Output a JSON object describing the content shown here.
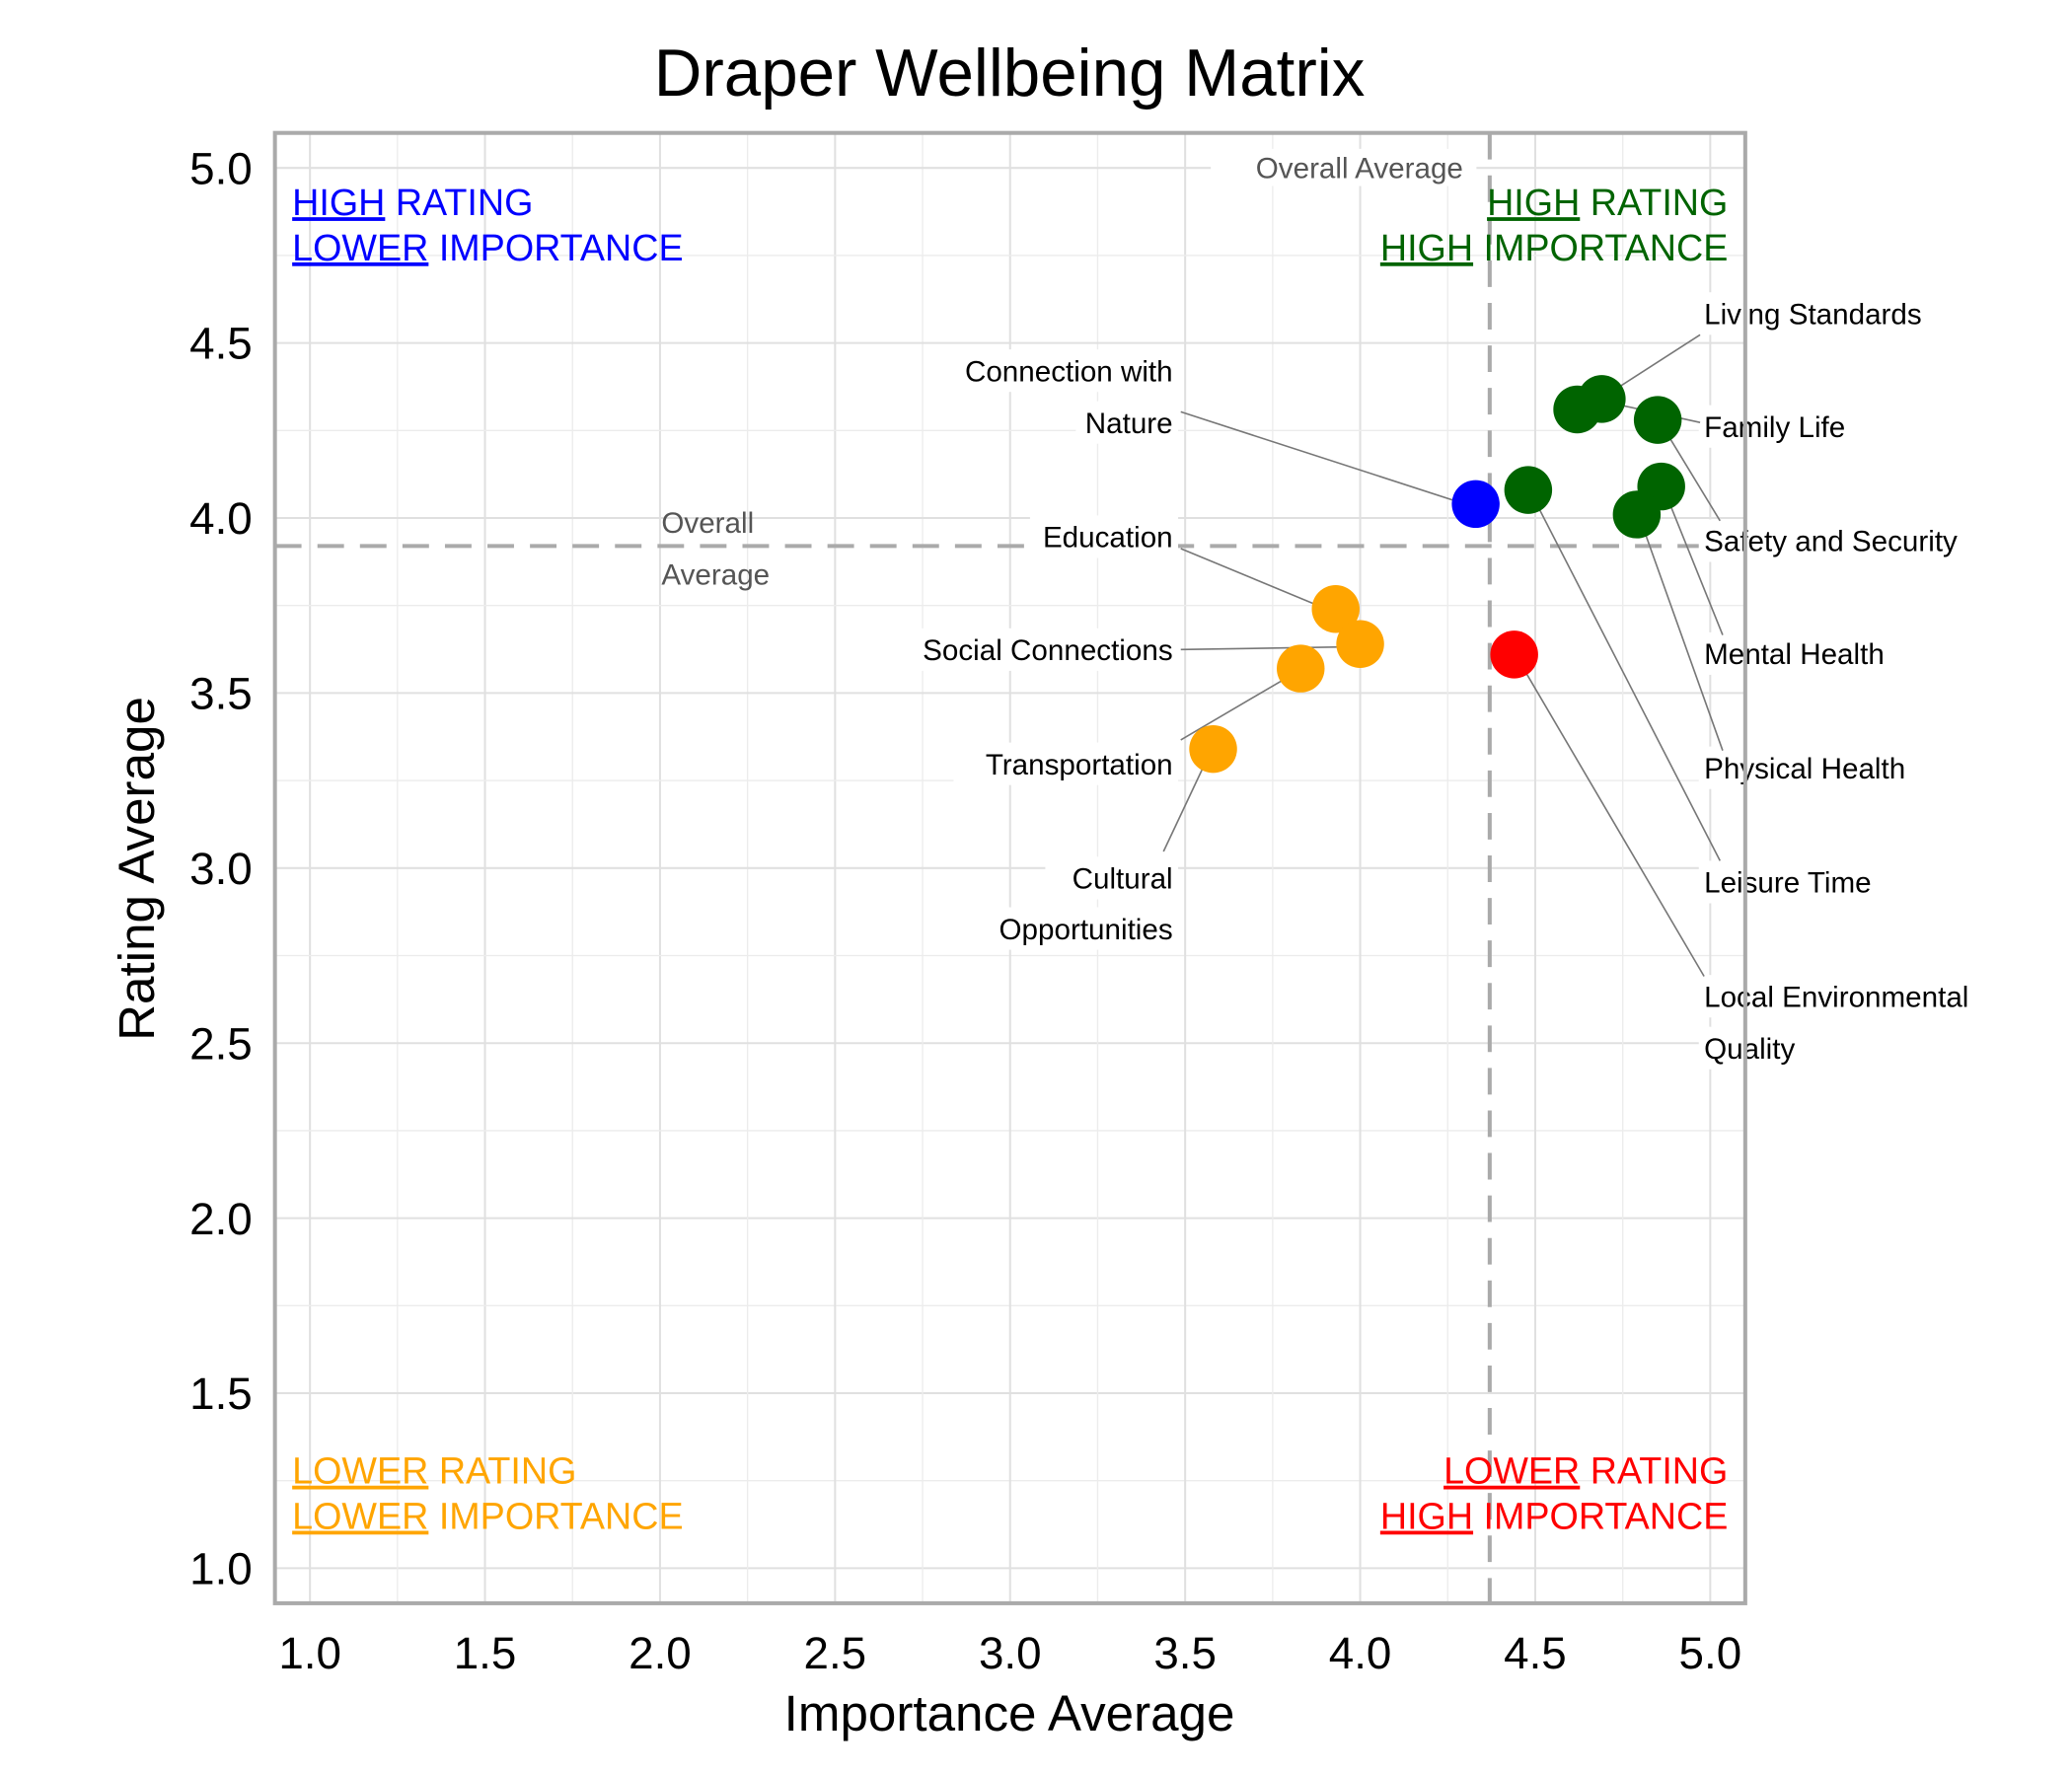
{
  "chart_data": {
    "type": "scatter",
    "title": "Draper Wellbeing Matrix",
    "xlabel": "Importance Average",
    "ylabel": "Rating Average",
    "xlim": [
      0.9,
      5.1
    ],
    "ylim": [
      0.9,
      5.1
    ],
    "xticks": [
      "1.0",
      "1.5",
      "2.0",
      "2.5",
      "3.0",
      "3.5",
      "4.0",
      "4.5",
      "5.0"
    ],
    "yticks": [
      "1.0",
      "1.5",
      "2.0",
      "2.5",
      "3.0",
      "3.5",
      "4.0",
      "4.5",
      "5.0"
    ],
    "grid": true,
    "average_importance": 4.37,
    "average_rating": 3.92,
    "average_label": "Overall Average",
    "average_label_h": [
      "Overall",
      "Average"
    ],
    "colors": {
      "high_high": "#006400",
      "high_low": "#0000ff",
      "low_low": "#ffa500",
      "low_high": "#ff0000"
    },
    "points": [
      {
        "label": "Living Standards",
        "x": 4.62,
        "y": 4.31,
        "quadrant": "high_high"
      },
      {
        "label": "Family Life",
        "x": 4.69,
        "y": 4.34,
        "quadrant": "high_high"
      },
      {
        "label": "Safety and Security",
        "x": 4.85,
        "y": 4.28,
        "quadrant": "high_high"
      },
      {
        "label": "Mental Health",
        "x": 4.86,
        "y": 4.09,
        "quadrant": "high_high"
      },
      {
        "label": "Physical Health",
        "x": 4.79,
        "y": 4.01,
        "quadrant": "high_high"
      },
      {
        "label": "Leisure Time",
        "x": 4.48,
        "y": 4.08,
        "quadrant": "high_high"
      },
      {
        "label": "Local Environmental Quality",
        "x": 4.44,
        "y": 3.61,
        "quadrant": "low_high"
      },
      {
        "label": "Connection with Nature",
        "x": 4.33,
        "y": 4.04,
        "quadrant": "high_low"
      },
      {
        "label": "Education",
        "x": 3.93,
        "y": 3.74,
        "quadrant": "low_low"
      },
      {
        "label": "Social Connections",
        "x": 4.0,
        "y": 3.64,
        "quadrant": "low_low"
      },
      {
        "label": "Transportation",
        "x": 3.83,
        "y": 3.57,
        "quadrant": "low_low"
      },
      {
        "label": "Cultural Opportunities",
        "x": 3.58,
        "y": 3.34,
        "quadrant": "low_low"
      }
    ],
    "quadrant_labels": {
      "high_low": [
        [
          "HIGH",
          " RATING"
        ],
        [
          "LOWER",
          " IMPORTANCE"
        ]
      ],
      "high_high": [
        [
          "HIGH",
          " RATING"
        ],
        [
          "HIGH",
          " IMPORTANCE"
        ]
      ],
      "low_low": [
        [
          "LOWER",
          " RATING"
        ],
        [
          "LOWER",
          " IMPORTANCE"
        ]
      ],
      "low_high": [
        [
          "LOWER",
          " RATING"
        ],
        [
          "HIGH",
          " IMPORTANCE"
        ]
      ]
    }
  }
}
